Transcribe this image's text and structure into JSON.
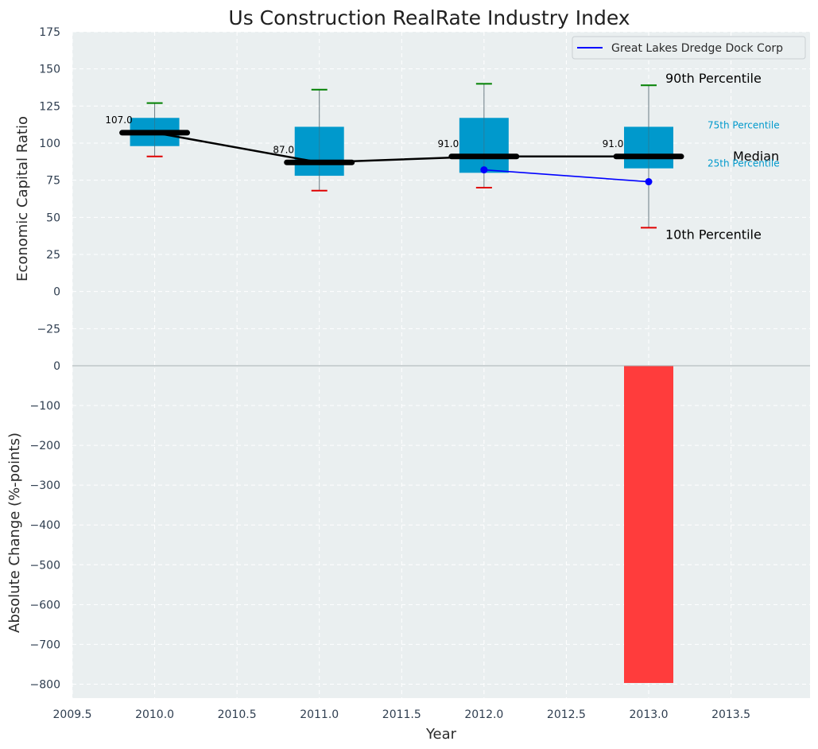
{
  "chart_data": {
    "type": "box",
    "title": "Us Construction RealRate Industry Index",
    "xlabel": "Year",
    "x_ticks": [
      "2009.5",
      "2010.0",
      "2010.5",
      "2011.0",
      "2011.5",
      "2012.0",
      "2012.5",
      "2013.0",
      "2013.5"
    ],
    "xlim": [
      2009.5,
      2013.98
    ],
    "grid": true,
    "top_panel": {
      "ylabel": "Economic Capital Ratio",
      "ylim": [
        -50,
        175
      ],
      "y_ticks": [
        "175",
        "150",
        "125",
        "100",
        "75",
        "50",
        "25",
        "0",
        "−25"
      ],
      "years": [
        2010,
        2011,
        2012,
        2013
      ],
      "percentiles": {
        "p10": [
          91,
          68,
          70,
          43
        ],
        "p25": [
          98,
          78,
          80,
          83
        ],
        "median": [
          107,
          87,
          91,
          91
        ],
        "p75": [
          117,
          111,
          117,
          111
        ],
        "p90": [
          127,
          136,
          140,
          139
        ]
      },
      "median_labels": [
        "107.0",
        "87.0",
        "91.0",
        "91.0"
      ],
      "series": [
        {
          "name": "Great Lakes Dredge Dock Corp",
          "x": [
            2012,
            2013
          ],
          "y": [
            82,
            74
          ]
        }
      ],
      "legend": {
        "placement": "top-right",
        "entries": [
          "Great Lakes Dredge Dock Corp"
        ]
      },
      "annotations": {
        "p90": "90th Percentile",
        "p75": "75th Percentile",
        "median": "Median",
        "p25": "25th Percentile",
        "p10": "10th Percentile"
      }
    },
    "bottom_panel": {
      "ylabel": "Absolute Change (%-points)",
      "ylim": [
        -835,
        0
      ],
      "y_ticks": [
        "0",
        "−100",
        "−200",
        "−300",
        "−400",
        "−500",
        "−600",
        "−700",
        "−800"
      ],
      "bars": [
        {
          "x": 2013,
          "value": -797
        }
      ]
    },
    "colors": {
      "box": "#0099cc",
      "median_line": "#000000",
      "p90_whisker": "#008000",
      "p10_whisker": "#e00000",
      "series_line": "#0000ff",
      "bar": "#ff3c3c",
      "plot_bg": "#eaeff0"
    }
  }
}
